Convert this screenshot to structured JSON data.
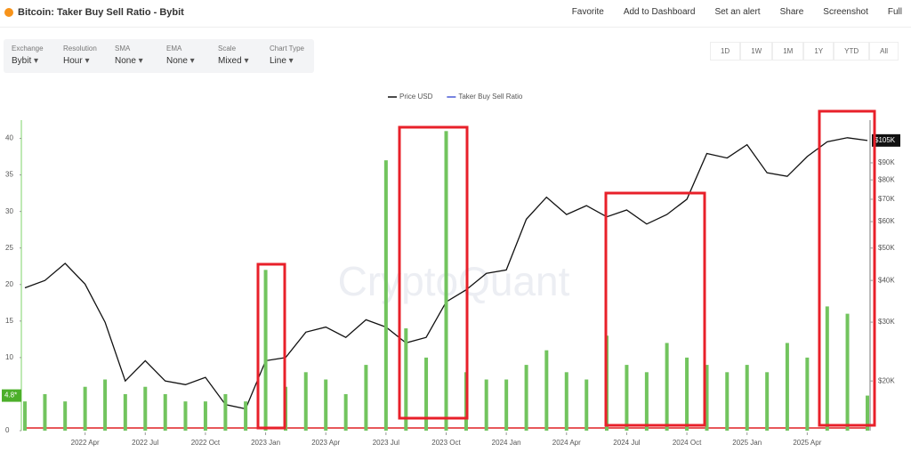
{
  "header": {
    "title": "Bitcoin: Taker Buy Sell Ratio - Bybit",
    "actions": [
      "Favorite",
      "Add to Dashboard",
      "Set an alert",
      "Share",
      "Screenshot",
      "Full"
    ]
  },
  "filters": [
    {
      "label": "Exchange",
      "value": "Bybit"
    },
    {
      "label": "Resolution",
      "value": "Hour"
    },
    {
      "label": "SMA",
      "value": "None"
    },
    {
      "label": "EMA",
      "value": "None"
    },
    {
      "label": "Scale",
      "value": "Mixed"
    },
    {
      "label": "Chart Type",
      "value": "Line"
    }
  ],
  "ranges": [
    "1D",
    "1W",
    "1M",
    "1Y",
    "YTD",
    "All"
  ],
  "chart_data": {
    "type": "line",
    "watermark": "CryptoQuant",
    "x": [
      2022,
      2022.083,
      2022.167,
      2022.25,
      2022.333,
      2022.417,
      2022.5,
      2022.583,
      2022.667,
      2022.75,
      2022.833,
      2022.917,
      2023,
      2023.083,
      2023.167,
      2023.25,
      2023.333,
      2023.417,
      2023.5,
      2023.583,
      2023.667,
      2023.75,
      2023.833,
      2023.917,
      2024,
      2024.083,
      2024.167,
      2024.25,
      2024.333,
      2024.417,
      2024.5,
      2024.583,
      2024.667,
      2024.75,
      2024.833,
      2024.917,
      2025,
      2025.083,
      2025.167,
      2025.25,
      2025.333,
      2025.417,
      2025.5
    ],
    "xlim": [
      2022,
      2025.5
    ],
    "xticks": [
      {
        "value": 2022.25,
        "label": "2022 Apr"
      },
      {
        "value": 2022.5,
        "label": "2022 Jul"
      },
      {
        "value": 2022.75,
        "label": "2022 Oct"
      },
      {
        "value": 2023,
        "label": "2023 Jan"
      },
      {
        "value": 2023.25,
        "label": "2023 Apr"
      },
      {
        "value": 2023.5,
        "label": "2023 Jul"
      },
      {
        "value": 2023.75,
        "label": "2023 Oct"
      },
      {
        "value": 2024,
        "label": "2024 Jan"
      },
      {
        "value": 2024.25,
        "label": "2024 Apr"
      },
      {
        "value": 2024.5,
        "label": "2024 Jul"
      },
      {
        "value": 2024.75,
        "label": "2024 Oct"
      },
      {
        "value": 2025,
        "label": "2025 Jan"
      },
      {
        "value": 2025.25,
        "label": "2025 Apr"
      }
    ],
    "ylim": [
      0,
      42.5
    ],
    "yticks": [
      0,
      5,
      10,
      15,
      20,
      25,
      30,
      35,
      40
    ],
    "y2lim": [
      14200,
      120800
    ],
    "y2log": true,
    "y2ticks": [
      {
        "value": 20000,
        "label": "$20K"
      },
      {
        "value": 30000,
        "label": "$30K"
      },
      {
        "value": 40000,
        "label": "$40K"
      },
      {
        "value": 50000,
        "label": "$50K"
      },
      {
        "value": 60000,
        "label": "$60K"
      },
      {
        "value": 70000,
        "label": "$70K"
      },
      {
        "value": 80000,
        "label": "$80K"
      },
      {
        "value": 90000,
        "label": "$90K"
      }
    ],
    "current": [
      {
        "value": 4.8,
        "label": "4.8*",
        "axis": "y",
        "color": "#4caf2a"
      },
      {
        "value": 105000,
        "label": "$105K",
        "axis": "y2",
        "color": "#111111"
      }
    ],
    "series": [
      {
        "name": "Price USD",
        "color": "#111111",
        "axis": "y2",
        "style": "line",
        "values": [
          38000,
          40000,
          45000,
          39000,
          30000,
          20000,
          23000,
          20000,
          19500,
          20500,
          17000,
          16500,
          23000,
          23500,
          28000,
          29000,
          27000,
          30500,
          29000,
          26000,
          27000,
          34500,
          37500,
          42000,
          43000,
          61000,
          71000,
          63000,
          67000,
          62000,
          65000,
          59000,
          63000,
          70000,
          96000,
          93000,
          102000,
          84000,
          82000,
          94000,
          104000,
          107000,
          105000
        ]
      },
      {
        "name": "Taker Buy Sell Ratio",
        "color": "#72c45e",
        "legend_color": "#4a5bd6",
        "axis": "y",
        "style": "bar",
        "values": [
          4,
          5,
          4,
          6,
          7,
          5,
          6,
          5,
          4,
          4,
          5,
          4,
          22,
          6,
          8,
          7,
          5,
          9,
          37,
          14,
          10,
          41,
          8,
          7,
          7,
          9,
          11,
          8,
          7,
          13,
          9,
          8,
          12,
          10,
          9,
          8,
          9,
          8,
          12,
          10,
          17,
          16,
          4.8
        ]
      }
    ]
  }
}
